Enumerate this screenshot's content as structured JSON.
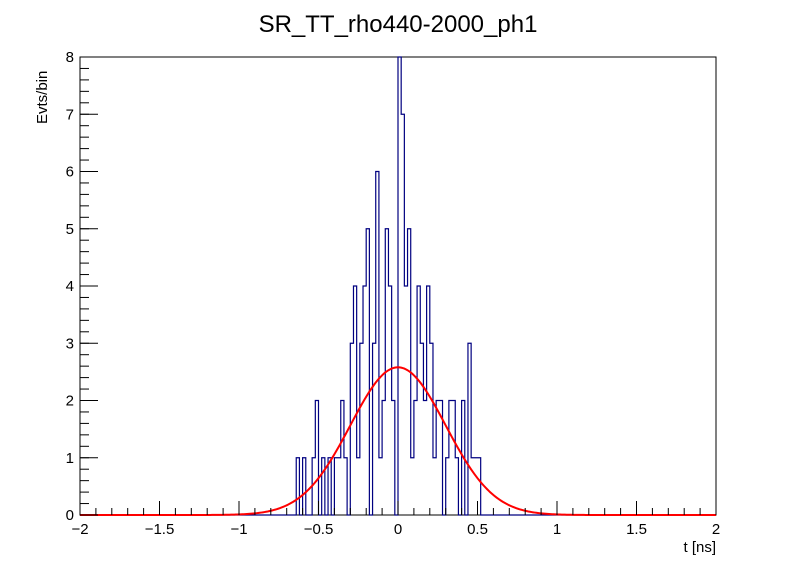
{
  "chart_data": {
    "type": "histogram",
    "title": "SR_TT_rho440-2000_ph1",
    "xlabel": "t [ns]",
    "ylabel": "Evts/bin",
    "xlim": [
      -2,
      2
    ],
    "ylim": [
      0,
      8
    ],
    "x_ticks": [
      "−2",
      "−1.5",
      "−1",
      "−0.5",
      "0",
      "0.5",
      "1",
      "1.5",
      "2"
    ],
    "x_tick_values": [
      -2,
      -1.5,
      -1,
      -0.5,
      0,
      0.5,
      1,
      1.5,
      2
    ],
    "y_ticks": [
      "0",
      "1",
      "2",
      "3",
      "4",
      "5",
      "6",
      "7",
      "8"
    ],
    "y_tick_values": [
      0,
      1,
      2,
      3,
      4,
      5,
      6,
      7,
      8
    ],
    "grid": false,
    "histogram": {
      "name": "",
      "color": "#000080",
      "bin_width": 0.02,
      "bin_start": -2,
      "counts": [
        0,
        0,
        0,
        0,
        0,
        0,
        0,
        0,
        0,
        0,
        0,
        0,
        0,
        0,
        0,
        0,
        0,
        0,
        0,
        0,
        0,
        0,
        0,
        0,
        0,
        0,
        0,
        0,
        0,
        0,
        0,
        0,
        0,
        0,
        0,
        0,
        0,
        0,
        0,
        0,
        0,
        0,
        0,
        0,
        0,
        0,
        0,
        0,
        0,
        0,
        0,
        0,
        0,
        0,
        0,
        0,
        0,
        0,
        0,
        0,
        0,
        0,
        0,
        0,
        0,
        0,
        0,
        0,
        1,
        0,
        1,
        0,
        0,
        1,
        2,
        0,
        1,
        0,
        1,
        0,
        1,
        1,
        2,
        1,
        0,
        3,
        4,
        1,
        3,
        4,
        5,
        0,
        3,
        6,
        1,
        2,
        5,
        4,
        2,
        0,
        8,
        7,
        4,
        5,
        1,
        2,
        4,
        3,
        2,
        4,
        3,
        1,
        2,
        2,
        0,
        1,
        2,
        2,
        1,
        0,
        2,
        0,
        3,
        1,
        1,
        1,
        0,
        0,
        0,
        0,
        0,
        0,
        0,
        0,
        0,
        0,
        0,
        0,
        0,
        0,
        0,
        0,
        0,
        0,
        0,
        0,
        0,
        0,
        0,
        0,
        0,
        0,
        0,
        0,
        0,
        0,
        0,
        0,
        0,
        0,
        0,
        0,
        0,
        0,
        0,
        0,
        0,
        0,
        0,
        0,
        0,
        0,
        0,
        0,
        0,
        0,
        0,
        0,
        0,
        0,
        0,
        0,
        0,
        0,
        0,
        0,
        0,
        0,
        0,
        0,
        0,
        0,
        0,
        0,
        0,
        0,
        0,
        0,
        0,
        0
      ]
    },
    "fit": {
      "type": "gaussian",
      "color": "#ff0000",
      "amplitude": 2.58,
      "mean": 0.0,
      "sigma": 0.3
    }
  }
}
